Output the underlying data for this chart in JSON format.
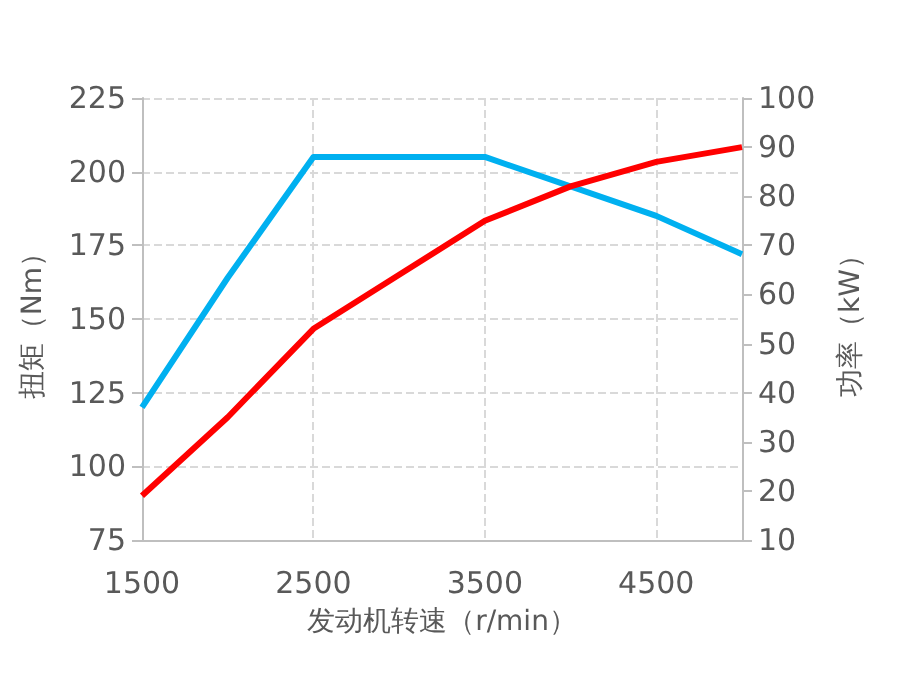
{
  "chart_data": {
    "type": "line",
    "xlabel": "发动机转速（r/min）",
    "ylabel": "扭矩（Nm）",
    "y2label": "功率（kW）",
    "xlim": [
      1500,
      5000
    ],
    "xticks": [
      1500,
      2500,
      3500,
      4500
    ],
    "ylim": [
      75,
      225
    ],
    "yticks": [
      75,
      100,
      125,
      150,
      175,
      200,
      225
    ],
    "y2lim": [
      10,
      100
    ],
    "y2ticks": [
      10,
      20,
      30,
      40,
      50,
      60,
      70,
      80,
      90,
      100
    ],
    "grid": true,
    "marker": "none",
    "line_style": "solid",
    "series": [
      {
        "color": "#00b0f0",
        "x": [
          1500,
          2000,
          2500,
          3500,
          4500,
          5000
        ],
        "values": [
          120,
          164,
          205,
          205,
          185,
          172
        ]
      },
      {
        "color": "#ff0000",
        "axis": "y2",
        "x": [
          1500,
          2000,
          2500,
          3000,
          3500,
          4000,
          4500,
          5000
        ],
        "values": [
          19,
          35,
          53,
          64,
          75,
          82,
          87,
          90
        ]
      }
    ]
  }
}
